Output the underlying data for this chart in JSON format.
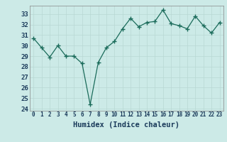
{
  "x": [
    0,
    1,
    2,
    3,
    4,
    5,
    6,
    7,
    8,
    9,
    10,
    11,
    12,
    13,
    14,
    15,
    16,
    17,
    18,
    19,
    20,
    21,
    22,
    23
  ],
  "y": [
    30.7,
    29.8,
    28.9,
    30.0,
    29.0,
    29.0,
    28.3,
    24.4,
    28.4,
    29.8,
    30.4,
    31.6,
    32.6,
    31.8,
    32.2,
    32.3,
    33.4,
    32.1,
    31.9,
    31.6,
    32.8,
    31.9,
    31.2,
    32.2
  ],
  "xlabel": "Humidex (Indice chaleur)",
  "ylim": [
    23.8,
    33.8
  ],
  "xlim": [
    -0.5,
    23.5
  ],
  "yticks": [
    24,
    25,
    26,
    27,
    28,
    29,
    30,
    31,
    32,
    33
  ],
  "xticks": [
    0,
    1,
    2,
    3,
    4,
    5,
    6,
    7,
    8,
    9,
    10,
    11,
    12,
    13,
    14,
    15,
    16,
    17,
    18,
    19,
    20,
    21,
    22,
    23
  ],
  "xtick_labels": [
    "0",
    "1",
    "2",
    "3",
    "4",
    "5",
    "6",
    "7",
    "8",
    "9",
    "10",
    "11",
    "12",
    "13",
    "14",
    "15",
    "16",
    "17",
    "18",
    "19",
    "20",
    "21",
    "22",
    "23"
  ],
  "line_color": "#1a6b5a",
  "marker_color": "#1a6b5a",
  "bg_color": "#cceae7",
  "grid_color": "#b8d8d4",
  "xlabel_fontsize": 7.5,
  "xtick_fontsize": 5.5,
  "ytick_fontsize": 6.5
}
